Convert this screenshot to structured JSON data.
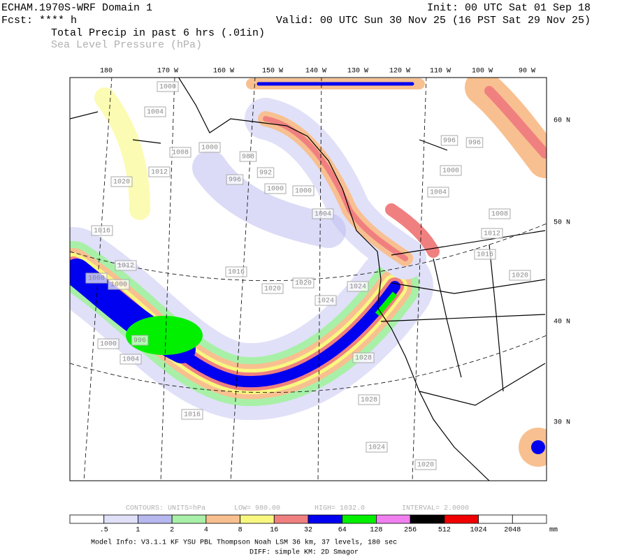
{
  "header": {
    "model": "ECHAM.1970S-WRF Domain 1",
    "fcst": "Fcst: **** h",
    "init": "Init: 00 UTC Sat 01 Sep 18",
    "valid": "Valid: 00 UTC Sun 30 Nov 25 (16 PST Sat 29 Nov 25)",
    "field1": "Total Precip in past 6 hrs (.01in)",
    "field2": "Sea Level Pressure (hPa)"
  },
  "map": {
    "lon_labels": [
      "180",
      "170 W",
      "160 W",
      "150 W",
      "140 W",
      "130 W",
      "120 W",
      "110 W",
      "100 W",
      "90 W"
    ],
    "lat_labels": [
      "60 N",
      "50 N",
      "40 N",
      "30 N"
    ],
    "pressure_labels": [
      "1000",
      "1004",
      "1008",
      "1000",
      "988",
      "992",
      "996",
      "1012",
      "1020",
      "1016",
      "1012",
      "1008",
      "1000",
      "1000",
      "1000",
      "1004",
      "1016",
      "1020",
      "1020",
      "1024",
      "1024",
      "1000",
      "1004",
      "1008",
      "1012",
      "1016",
      "1020",
      "996",
      "1000",
      "1004",
      "1028",
      "1028",
      "1024",
      "1020",
      "1016",
      "996",
      "996"
    ]
  },
  "contours": {
    "units": "CONTOURS:  UNITS=hPa",
    "low": "LOW=  980.00",
    "high": "HIGH=  1032.0",
    "interval": "INTERVAL=  2.0000"
  },
  "colorbar": {
    "labels": [
      ".5",
      "1",
      "2",
      "4",
      "8",
      "16",
      "32",
      "64",
      "128",
      "256",
      "512",
      "1024",
      "2048"
    ],
    "unit": "mm",
    "colors": [
      "#ffffff",
      "#e0e0f8",
      "#b8b8f0",
      "#a8f0a8",
      "#f8c090",
      "#f8f880",
      "#f08080",
      "#0000f0",
      "#00f000",
      "#f080f0",
      "#000000",
      "#f00000",
      "#ffffff",
      "#ffffff"
    ]
  },
  "footer": {
    "line1": "Model Info: V3.1.1   KF      YSU PBL  Thompson    Noah LSM  36 km,   37 levels,  180 sec",
    "line2": "DIFF: simple KM: 2D Smagor"
  }
}
